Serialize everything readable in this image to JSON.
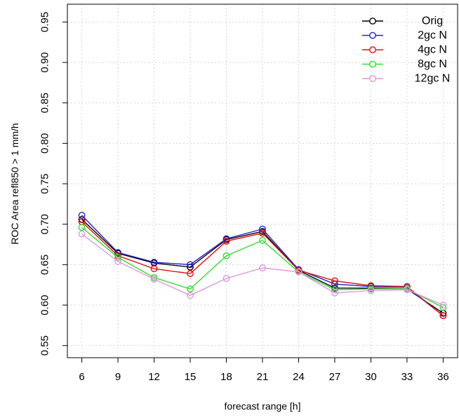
{
  "chart_data": {
    "type": "line",
    "xlabel": "forecast range [h]",
    "ylabel": "ROC Area refl850 > 1 mm/h",
    "x": [
      6,
      9,
      12,
      15,
      18,
      21,
      24,
      27,
      30,
      33,
      36
    ],
    "x_ticks": [
      "6",
      "9",
      "12",
      "15",
      "18",
      "21",
      "24",
      "27",
      "30",
      "33",
      "36"
    ],
    "y_ticks": [
      "0.55",
      "0.60",
      "0.65",
      "0.70",
      "0.75",
      "0.80",
      "0.85",
      "0.90",
      "0.95"
    ],
    "xlim": [
      4.8,
      37.2
    ],
    "ylim": [
      0.535,
      0.972
    ],
    "grid": true,
    "legend_position": "top-right",
    "series": [
      {
        "name": "Orig",
        "color": "#000000",
        "values": [
          0.706,
          0.664,
          0.652,
          0.647,
          0.681,
          0.691,
          0.643,
          0.621,
          0.621,
          0.62,
          0.59
        ]
      },
      {
        "name": "2gc N",
        "color": "#2222cc",
        "values": [
          0.711,
          0.665,
          0.653,
          0.65,
          0.682,
          0.694,
          0.644,
          0.626,
          0.623,
          0.622,
          0.587
        ]
      },
      {
        "name": "4gc N",
        "color": "#e01010",
        "values": [
          0.703,
          0.661,
          0.645,
          0.639,
          0.679,
          0.689,
          0.643,
          0.63,
          0.624,
          0.623,
          0.587
        ]
      },
      {
        "name": "8gc N",
        "color": "#33dd33",
        "values": [
          0.696,
          0.659,
          0.634,
          0.62,
          0.661,
          0.68,
          0.641,
          0.619,
          0.62,
          0.62,
          0.597
        ]
      },
      {
        "name": "12gc N",
        "color": "#dd99dd",
        "values": [
          0.688,
          0.654,
          0.632,
          0.612,
          0.633,
          0.646,
          0.641,
          0.615,
          0.618,
          0.619,
          0.6
        ]
      }
    ]
  }
}
